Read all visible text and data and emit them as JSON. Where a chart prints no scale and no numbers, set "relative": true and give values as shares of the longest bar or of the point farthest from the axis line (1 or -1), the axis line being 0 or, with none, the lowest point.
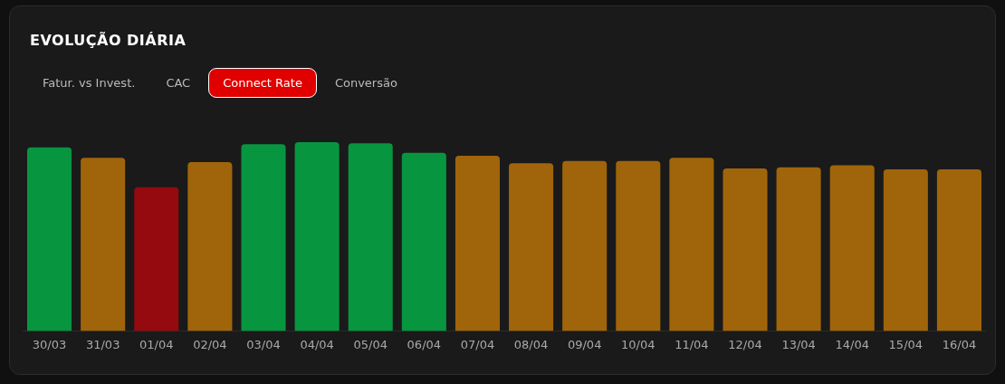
{
  "chart_data": {
    "type": "bar",
    "title": "EVOLUÇÃO DIÁRIA",
    "relative": true,
    "annotations": [
      "Fatur. vs Invest.",
      "CAC",
      "Connect Rate",
      "Conversão"
    ],
    "categories": [
      "30/03",
      "31/03",
      "01/04",
      "02/04",
      "03/04",
      "04/04",
      "05/04",
      "06/04",
      "07/04",
      "08/04",
      "09/04",
      "10/04",
      "11/04",
      "12/04",
      "13/04",
      "14/04",
      "15/04",
      "16/04"
    ],
    "values": [
      0.972,
      0.917,
      0.761,
      0.894,
      0.989,
      1,
      0.994,
      0.944,
      0.928,
      0.889,
      0.9,
      0.9,
      0.917,
      0.861,
      0.867,
      0.878,
      0.856,
      0.856
    ],
    "colors": [
      "#07963f",
      "#a0650a",
      "#940a0e",
      "#a0650a",
      "#07963f",
      "#07963f",
      "#07963f",
      "#07963f",
      "#a0650a",
      "#a0650a",
      "#a0650a",
      "#a0650a",
      "#a0650a",
      "#a0650a",
      "#a0650a",
      "#a0650a",
      "#a0650a",
      "#a0650a"
    ],
    "legend": false
  }
}
